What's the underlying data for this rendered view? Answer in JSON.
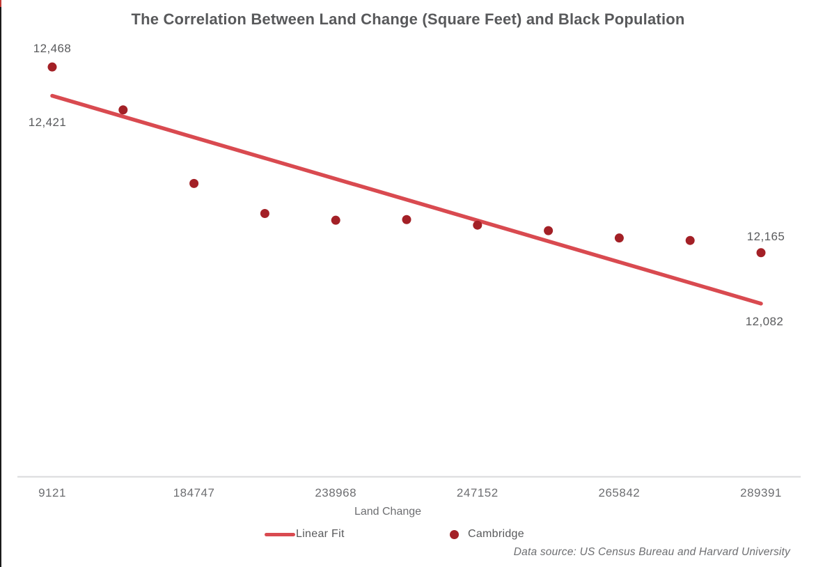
{
  "chart": {
    "title": "The Correlation Between Land Change (Square Feet) and Black Population",
    "x_axis": {
      "label": "Land Change",
      "tick_labels": [
        "9121",
        "184747",
        "238968",
        "247152",
        "265842",
        "289391"
      ]
    },
    "legend": {
      "linear_fit_label": "Linear Fit",
      "cambridge_label": "Cambridge"
    },
    "annotations": {
      "first_point": "12,468",
      "fit_start": "12,421",
      "last_point": "12,165",
      "fit_end": "12,082"
    },
    "footer": "Data source: US Census Bureau and Harvard University",
    "colors": {
      "dot": "#a32026",
      "line": "#d94a50",
      "title_text": "#58595b",
      "axis_text": "#6d6e71",
      "axis_line": "#d9dadb",
      "left_border": "#1b1b1b",
      "left_border_accent": "#c23a34"
    }
  },
  "chart_data": {
    "type": "scatter",
    "title": "The Correlation Between Land Change (Square Feet) and Black Population",
    "xlabel": "Land Change",
    "ylabel": "",
    "x_tick_labels": [
      "9121",
      "184747",
      "238968",
      "247152",
      "265842",
      "289391"
    ],
    "x_tick_label_point_indices": [
      0,
      2,
      4,
      6,
      8,
      10
    ],
    "grid": false,
    "legend_position": "bottom",
    "ylim": [
      11810,
      12500
    ],
    "series": [
      {
        "name": "Cambridge",
        "type": "scatter",
        "values": [
          12468,
          12398,
          12278,
          12229,
          12218,
          12219,
          12210,
          12201,
          12189,
          12185,
          12165
        ],
        "labeled_values": {
          "first": 12468,
          "last": 12165
        }
      },
      {
        "name": "Linear Fit",
        "type": "line",
        "values": {
          "start": 12421,
          "end": 12082
        },
        "labeled_values": {
          "first": 12421,
          "last": 12082
        }
      }
    ]
  }
}
